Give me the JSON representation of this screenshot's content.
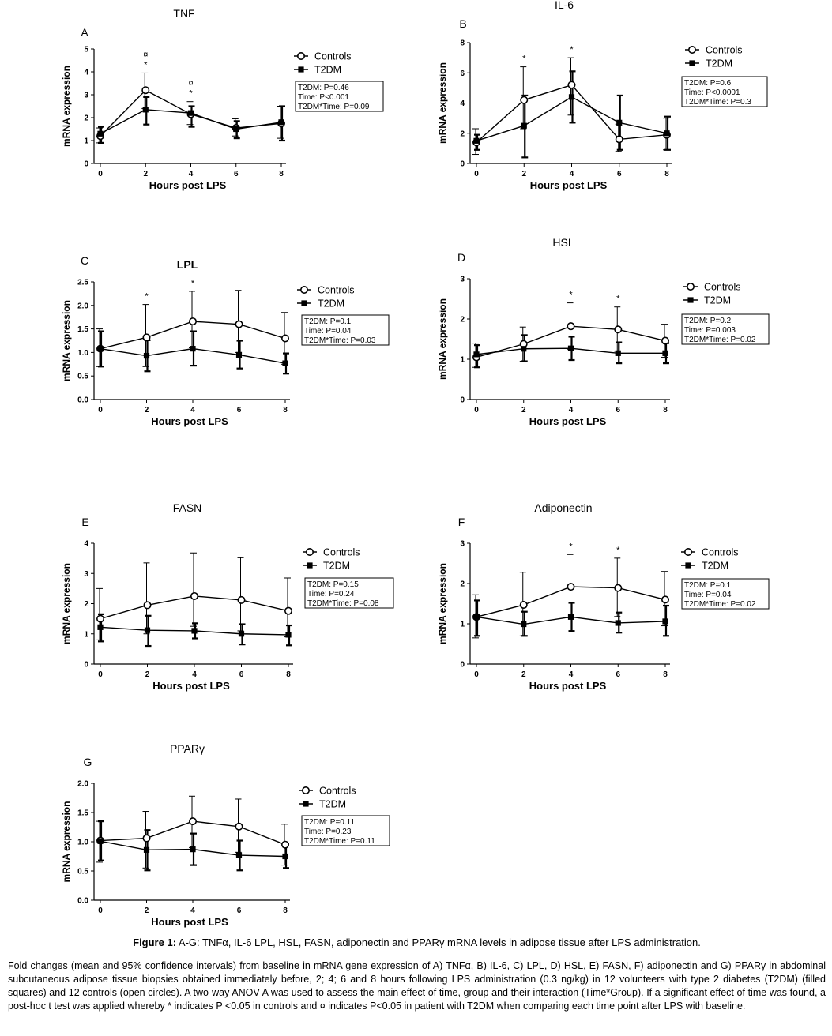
{
  "chart_data": [
    {
      "type": "line",
      "panel": "A",
      "title": "TNF",
      "xlabel": "Hours post LPS",
      "ylabel": "mRNA expression",
      "x": [
        0,
        2,
        4,
        6,
        8
      ],
      "xlim": [
        0,
        8
      ],
      "ylim": [
        0,
        5
      ],
      "yticks": [
        0,
        1,
        2,
        3,
        4,
        5
      ],
      "ytick_labels": [
        "0",
        "1",
        "2",
        "3",
        "4",
        "5"
      ],
      "series": [
        {
          "name": "Controls",
          "marker": "open-circle",
          "values": [
            1.2,
            3.2,
            2.15,
            1.55,
            1.75
          ],
          "ci_low": [
            0.9,
            2.4,
            1.7,
            1.2,
            1.1
          ],
          "ci_high": [
            1.55,
            3.95,
            2.7,
            1.95,
            2.5
          ]
        },
        {
          "name": "T2DM",
          "marker": "filled-square",
          "values": [
            1.3,
            2.35,
            2.2,
            1.5,
            1.8
          ],
          "ci_low": [
            0.9,
            1.7,
            1.6,
            1.1,
            1.0
          ],
          "ci_high": [
            1.6,
            2.9,
            2.5,
            1.85,
            2.5
          ]
        }
      ],
      "stats": [
        "T2DM: P=0.46",
        "Time: P<0.001",
        "T2DM*Time: P=0.09"
      ],
      "annotations": [
        {
          "x": 2,
          "text": "¤*"
        },
        {
          "x": 4,
          "text": "¤*"
        }
      ]
    },
    {
      "type": "line",
      "panel": "B",
      "title": "IL-6",
      "xlabel": "Hours post LPS",
      "ylabel": "mRNA expression",
      "x": [
        0,
        2,
        4,
        6,
        8
      ],
      "xlim": [
        0,
        8
      ],
      "ylim": [
        0,
        8
      ],
      "yticks": [
        0,
        2,
        4,
        6,
        8
      ],
      "ytick_labels": [
        "0",
        "2",
        "4",
        "6",
        "8"
      ],
      "series": [
        {
          "name": "Controls",
          "marker": "open-circle",
          "values": [
            1.4,
            4.2,
            5.2,
            1.6,
            1.9
          ],
          "ci_low": [
            0.6,
            2.3,
            3.2,
            0.8,
            0.9
          ],
          "ci_high": [
            2.3,
            6.4,
            7.0,
            2.6,
            3.0
          ]
        },
        {
          "name": "T2DM",
          "marker": "filled-square",
          "values": [
            1.5,
            2.5,
            4.4,
            2.7,
            2.0
          ],
          "ci_low": [
            0.9,
            0.4,
            2.7,
            0.9,
            0.9
          ],
          "ci_high": [
            1.9,
            4.5,
            6.1,
            4.5,
            3.1
          ]
        }
      ],
      "stats": [
        "T2DM: P=0.6",
        "Time: P<0.0001",
        "T2DM*Time: P=0.3"
      ],
      "annotations": [
        {
          "x": 2,
          "text": "*"
        },
        {
          "x": 4,
          "text": "*"
        }
      ]
    },
    {
      "type": "line",
      "panel": "C",
      "title": "LPL",
      "xlabel": "Hours post LPS",
      "ylabel": "mRNA expression",
      "x": [
        0,
        2,
        4,
        6,
        8
      ],
      "xlim": [
        0,
        8
      ],
      "ylim": [
        0,
        2.5
      ],
      "yticks": [
        0,
        0.5,
        1,
        1.5,
        2,
        2.5
      ],
      "ytick_labels": [
        "0.0",
        "0.5",
        "1.0",
        "1.5",
        "2.0",
        "2.5"
      ],
      "series": [
        {
          "name": "Controls",
          "marker": "open-circle",
          "values": [
            1.08,
            1.32,
            1.66,
            1.6,
            1.3
          ],
          "ci_low": [
            0.7,
            0.7,
            1.1,
            1.0,
            0.75
          ],
          "ci_high": [
            1.5,
            2.02,
            2.3,
            2.32,
            1.85
          ]
        },
        {
          "name": "T2DM",
          "marker": "filled-square",
          "values": [
            1.08,
            0.93,
            1.08,
            0.95,
            0.77
          ],
          "ci_low": [
            0.7,
            0.6,
            0.72,
            0.66,
            0.55
          ],
          "ci_high": [
            1.45,
            1.26,
            1.45,
            1.25,
            0.98
          ]
        }
      ],
      "stats": [
        "T2DM: P=0.1",
        "Time: P=0.04",
        "T2DM*Time: P=0.03"
      ],
      "annotations": [
        {
          "x": 2,
          "text": "*"
        },
        {
          "x": 4,
          "text": "*"
        }
      ]
    },
    {
      "type": "line",
      "panel": "D",
      "title": "HSL",
      "xlabel": "Hours post LPS",
      "ylabel": "mRNA expression",
      "x": [
        0,
        2,
        4,
        6,
        8
      ],
      "xlim": [
        0,
        8
      ],
      "ylim": [
        0,
        3
      ],
      "yticks": [
        0,
        1,
        2,
        3
      ],
      "ytick_labels": [
        "0",
        "1",
        "2",
        "3"
      ],
      "series": [
        {
          "name": "Controls",
          "marker": "open-circle",
          "values": [
            1.05,
            1.38,
            1.82,
            1.74,
            1.46
          ],
          "ci_low": [
            0.8,
            0.95,
            1.25,
            1.2,
            1.05
          ],
          "ci_high": [
            1.4,
            1.8,
            2.4,
            2.3,
            1.87
          ]
        },
        {
          "name": "T2DM",
          "marker": "filled-square",
          "values": [
            1.12,
            1.26,
            1.27,
            1.15,
            1.15
          ],
          "ci_low": [
            0.8,
            0.95,
            0.98,
            0.9,
            0.9
          ],
          "ci_high": [
            1.35,
            1.6,
            1.56,
            1.42,
            1.4
          ]
        }
      ],
      "stats": [
        "T2DM: P=0.2",
        "Time: P=0.003",
        "T2DM*Time: P=0.02"
      ],
      "annotations": [
        {
          "x": 4,
          "text": "*"
        },
        {
          "x": 6,
          "text": "*"
        }
      ]
    },
    {
      "type": "line",
      "panel": "E",
      "title": "FASN",
      "xlabel": "Hours post LPS",
      "ylabel": "mRNA expression",
      "x": [
        0,
        2,
        4,
        6,
        8
      ],
      "xlim": [
        0,
        8
      ],
      "ylim": [
        0,
        4
      ],
      "yticks": [
        0,
        1,
        2,
        3,
        4
      ],
      "ytick_labels": [
        "0",
        "1",
        "2",
        "3",
        "4"
      ],
      "series": [
        {
          "name": "Controls",
          "marker": "open-circle",
          "values": [
            1.5,
            1.95,
            2.25,
            2.12,
            1.76
          ],
          "ci_low": [
            0.8,
            1.0,
            1.25,
            1.1,
            0.9
          ],
          "ci_high": [
            2.5,
            3.35,
            3.68,
            3.52,
            2.85
          ]
        },
        {
          "name": "T2DM",
          "marker": "filled-square",
          "values": [
            1.22,
            1.12,
            1.1,
            1.0,
            0.97
          ],
          "ci_low": [
            0.75,
            0.6,
            0.85,
            0.65,
            0.62
          ],
          "ci_high": [
            1.65,
            1.6,
            1.35,
            1.32,
            1.28
          ]
        }
      ],
      "stats": [
        "T2DM: P=0.15",
        "Time: P=0.24",
        "T2DM*Time: P=0.08"
      ],
      "annotations": []
    },
    {
      "type": "line",
      "panel": "F",
      "title": "Adiponectin",
      "xlabel": "Hours post LPS",
      "ylabel": "mRNA expression",
      "x": [
        0,
        2,
        4,
        6,
        8
      ],
      "xlim": [
        0,
        8
      ],
      "ylim": [
        0,
        3
      ],
      "yticks": [
        0,
        1,
        2,
        3
      ],
      "ytick_labels": [
        "0",
        "1",
        "2",
        "3"
      ],
      "series": [
        {
          "name": "Controls",
          "marker": "open-circle",
          "values": [
            1.17,
            1.47,
            1.92,
            1.89,
            1.6
          ],
          "ci_low": [
            0.65,
            0.7,
            1.15,
            1.18,
            0.95
          ],
          "ci_high": [
            1.72,
            2.28,
            2.72,
            2.63,
            2.3
          ]
        },
        {
          "name": "T2DM",
          "marker": "filled-square",
          "values": [
            1.17,
            0.99,
            1.17,
            1.02,
            1.06
          ],
          "ci_low": [
            0.7,
            0.7,
            0.82,
            0.78,
            0.7
          ],
          "ci_high": [
            1.58,
            1.3,
            1.52,
            1.28,
            1.45
          ]
        }
      ],
      "stats": [
        "T2DM: P=0.1",
        "Time: P=0.04",
        "T2DM*Time: P=0.02"
      ],
      "annotations": [
        {
          "x": 4,
          "text": "*"
        },
        {
          "x": 6,
          "text": "*"
        }
      ]
    },
    {
      "type": "line",
      "panel": "G",
      "title": "PPARγ",
      "xlabel": "Hours post LPS",
      "ylabel": "mRNA expression",
      "x": [
        0,
        2,
        4,
        6,
        8
      ],
      "xlim": [
        0,
        8
      ],
      "ylim": [
        0,
        2
      ],
      "yticks": [
        0,
        0.5,
        1,
        1.5,
        2
      ],
      "ytick_labels": [
        "0.0",
        "0.5",
        "1.0",
        "1.5",
        "2.0"
      ],
      "series": [
        {
          "name": "Controls",
          "marker": "open-circle",
          "values": [
            1.02,
            1.06,
            1.35,
            1.26,
            0.95
          ],
          "ci_low": [
            0.65,
            0.55,
            0.9,
            0.82,
            0.6
          ],
          "ci_high": [
            1.35,
            1.52,
            1.78,
            1.73,
            1.3
          ]
        },
        {
          "name": "T2DM",
          "marker": "filled-square",
          "values": [
            1.01,
            0.86,
            0.87,
            0.77,
            0.75
          ],
          "ci_low": [
            0.68,
            0.51,
            0.6,
            0.51,
            0.55
          ],
          "ci_high": [
            1.35,
            1.2,
            1.14,
            1.02,
            0.96
          ]
        }
      ],
      "stats": [
        "T2DM: P=0.11",
        "Time: P=0.23",
        "T2DM*Time: P=0.11"
      ],
      "annotations": []
    }
  ],
  "caption": {
    "figure_label": "Figure 1:",
    "figure_title": " A-G: TNFα, IL-6 LPL, HSL, FASN, adiponectin and PPARγ mRNA levels in adipose tissue after LPS administration.",
    "text": "Fold changes (mean and 95% confidence intervals) from baseline in mRNA gene expression of A) TNFα, B) IL-6, C) LPL, D) HSL, E) FASN, F) adiponectin and G) PPARγ in abdominal subcutaneous adipose tissue biopsies obtained immediately before, 2; 4; 6 and 8 hours following LPS administration (0.3 ng/kg) in 12 volunteers with type 2 diabetes (T2DM) (filled squares) and 12 controls (open circles). A two-way ANOV A was used to assess the main effect of time, group and their interaction (Time*Group). If a significant effect of time was found, a post-hoc t test was applied whereby * indicates P <0.05 in controls and ¤ indicates P<0.05 in patient with T2DM when comparing each time point after LPS with baseline."
  }
}
